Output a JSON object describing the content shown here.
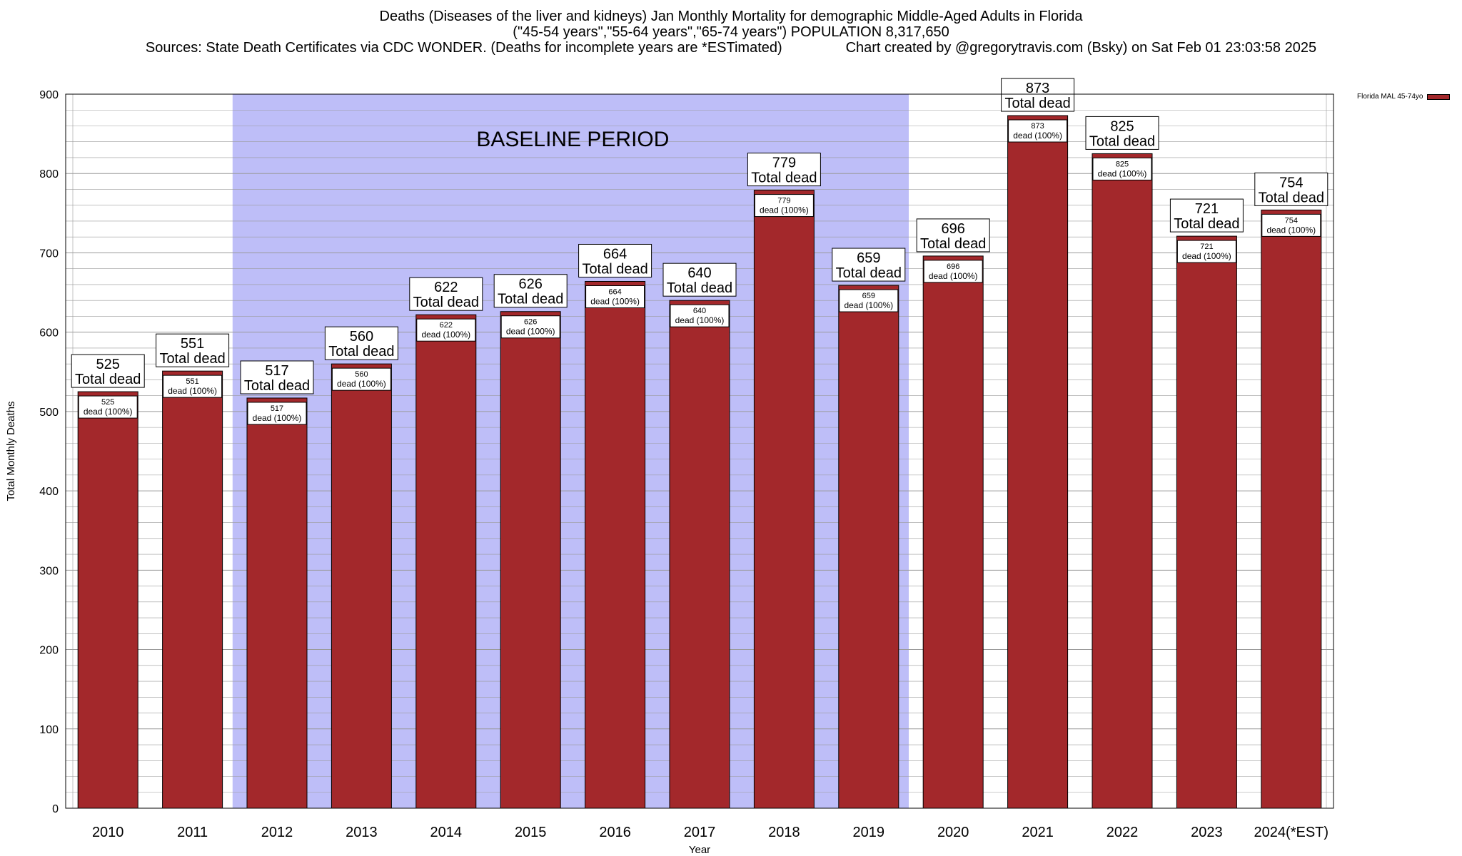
{
  "header": {
    "title_line1": "Deaths (Diseases of the liver and kidneys) Jan Monthly Mortality for demographic Middle-Aged Adults in Florida",
    "title_line2": "(\"45-54 years\",\"55-64 years\",\"65-74 years\") POPULATION 8,317,650",
    "sources": "Sources: State Death Certificates via CDC WONDER. (Deaths for incomplete years are *ESTimated)",
    "credit": "Chart created by @gregorytravis.com (Bsky) on Sat Feb 01 23:03:58 2025"
  },
  "legend": {
    "label": "Florida MAL 45-74yo",
    "placement": "top-right"
  },
  "colors": {
    "bar": "#a3282b",
    "baseline_band": "#bebef8",
    "grid": "#9a9a9a"
  },
  "chart_data": {
    "type": "bar",
    "title": "Deaths (Diseases of the liver and kidneys) Jan Monthly Mortality for demographic Middle-Aged Adults in Florida",
    "xlabel": "Year",
    "ylabel": "Total Monthly Deaths",
    "ylim": [
      0,
      900
    ],
    "yticks": [
      0,
      100,
      200,
      300,
      400,
      500,
      600,
      700,
      800,
      900
    ],
    "grid": true,
    "categories": [
      "2010",
      "2011",
      "2012",
      "2013",
      "2014",
      "2015",
      "2016",
      "2017",
      "2018",
      "2019",
      "2020",
      "2021",
      "2022",
      "2023",
      "2024(*EST)"
    ],
    "series": [
      {
        "name": "Florida MAL 45-74yo",
        "values": [
          525,
          551,
          517,
          560,
          622,
          626,
          664,
          640,
          779,
          659,
          696,
          873,
          825,
          721,
          754
        ]
      }
    ],
    "total_label": "Total dead",
    "inner_label": "dead (100%)",
    "annotation": {
      "text": "BASELINE PERIOD",
      "start_category": "2012",
      "end_category": "2019"
    }
  }
}
